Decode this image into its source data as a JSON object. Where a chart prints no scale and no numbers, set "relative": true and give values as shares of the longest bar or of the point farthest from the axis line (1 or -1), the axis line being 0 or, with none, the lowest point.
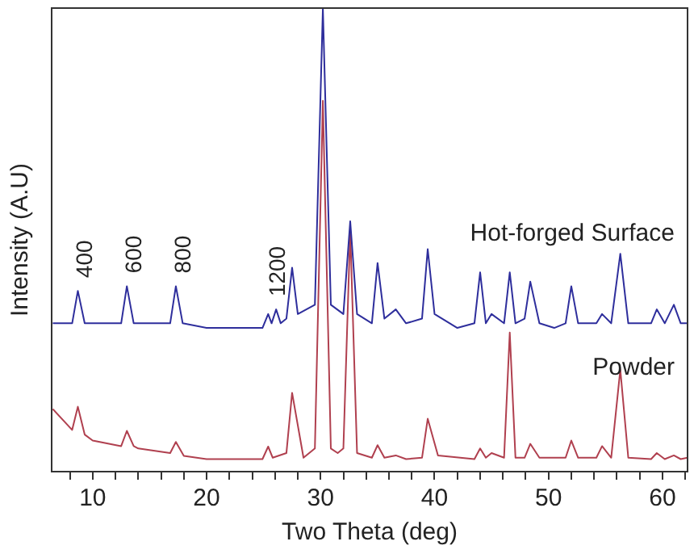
{
  "chart_data": {
    "type": "line",
    "relative": true,
    "xlabel": "Two Theta (deg)",
    "ylabel": "Intensity (A.U)",
    "xlim": [
      6.4,
      62.2
    ],
    "xticks": [
      {
        "value": 8,
        "label": null
      },
      10,
      {
        "value": 12,
        "label": null
      },
      {
        "value": 14,
        "label": null
      },
      {
        "value": 16,
        "label": null
      },
      {
        "value": 18,
        "label": null
      },
      20,
      {
        "value": 22,
        "label": null
      },
      {
        "value": 24,
        "label": null
      },
      {
        "value": 26,
        "label": null
      },
      {
        "value": 28,
        "label": null
      },
      30,
      {
        "value": 32,
        "label": null
      },
      {
        "value": 34,
        "label": null
      },
      {
        "value": 36,
        "label": null
      },
      {
        "value": 38,
        "label": null
      },
      40,
      {
        "value": 42,
        "label": null
      },
      {
        "value": 44,
        "label": null
      },
      {
        "value": 46,
        "label": null
      },
      {
        "value": 48,
        "label": null
      },
      50,
      {
        "value": 52,
        "label": null
      },
      {
        "value": 54,
        "label": null
      },
      {
        "value": 56,
        "label": null
      },
      {
        "value": 58,
        "label": null
      },
      60,
      {
        "value": 62,
        "label": null
      }
    ],
    "grid": false,
    "legend": false,
    "marker": "none",
    "line_style": "solid",
    "series": [
      {
        "name": "Hot-forged Surface",
        "color": "#2e2e9c",
        "x": [
          6.5,
          8.2,
          8.7,
          9.3,
          12.5,
          13.0,
          13.6,
          16.8,
          17.3,
          17.9,
          20,
          24.9,
          25.4,
          25.7,
          26.1,
          26.5,
          27.0,
          27.5,
          28.0,
          29.5,
          30.2,
          30.9,
          32.0,
          32.6,
          33.2,
          34.5,
          35.0,
          35.6,
          36.6,
          37.5,
          38.9,
          39.4,
          40.0,
          42,
          43.5,
          44.0,
          44.5,
          45.0,
          46.1,
          46.6,
          47.1,
          47.9,
          48.4,
          49.2,
          50.5,
          51.5,
          52.0,
          52.6,
          54.2,
          54.7,
          55.5,
          56.3,
          57.0,
          59.0,
          59.5,
          60.2,
          61.0,
          61.6,
          62.2
        ],
        "values": [
          0.32,
          0.32,
          0.39,
          0.32,
          0.32,
          0.4,
          0.32,
          0.32,
          0.4,
          0.32,
          0.31,
          0.31,
          0.34,
          0.32,
          0.35,
          0.32,
          0.33,
          0.44,
          0.34,
          0.36,
          1.0,
          0.36,
          0.34,
          0.54,
          0.34,
          0.32,
          0.45,
          0.33,
          0.35,
          0.32,
          0.33,
          0.48,
          0.34,
          0.31,
          0.32,
          0.43,
          0.32,
          0.34,
          0.32,
          0.43,
          0.32,
          0.33,
          0.41,
          0.32,
          0.31,
          0.32,
          0.4,
          0.32,
          0.32,
          0.34,
          0.32,
          0.47,
          0.32,
          0.32,
          0.35,
          0.32,
          0.36,
          0.32,
          0.32
        ]
      },
      {
        "name": "Powder",
        "color": "#b0404f",
        "x": [
          6.5,
          8.2,
          8.7,
          9.3,
          10,
          12.5,
          13.0,
          13.6,
          14,
          16.8,
          17.3,
          18,
          20,
          24.9,
          25.4,
          25.8,
          27.0,
          27.5,
          28.5,
          29.5,
          30.2,
          30.9,
          31.5,
          32.0,
          32.6,
          33.2,
          34.5,
          35.0,
          35.6,
          36.6,
          37.5,
          38.9,
          39.4,
          40.3,
          43.5,
          44.0,
          44.5,
          45.0,
          46.1,
          46.6,
          47.1,
          47.9,
          48.4,
          49.2,
          51.5,
          52.0,
          52.6,
          54.2,
          54.7,
          55.5,
          56.3,
          57.0,
          59.0,
          59.5,
          60.2,
          61.0,
          61.6,
          62.2
        ],
        "values": [
          0.135,
          0.09,
          0.14,
          0.08,
          0.067,
          0.055,
          0.088,
          0.055,
          0.05,
          0.04,
          0.064,
          0.034,
          0.027,
          0.027,
          0.054,
          0.03,
          0.04,
          0.17,
          0.03,
          0.05,
          0.8,
          0.05,
          0.04,
          0.05,
          0.52,
          0.04,
          0.03,
          0.057,
          0.03,
          0.035,
          0.027,
          0.03,
          0.114,
          0.035,
          0.027,
          0.05,
          0.03,
          0.04,
          0.03,
          0.3,
          0.03,
          0.03,
          0.06,
          0.03,
          0.03,
          0.067,
          0.03,
          0.03,
          0.055,
          0.03,
          0.22,
          0.03,
          0.027,
          0.04,
          0.027,
          0.035,
          0.027,
          0.03
        ]
      }
    ],
    "annotations": [
      {
        "text": "400",
        "x": 8.7,
        "y": 0.39
      },
      {
        "text": "600",
        "x": 13.0,
        "y": 0.4
      },
      {
        "text": "800",
        "x": 17.3,
        "y": 0.4
      },
      {
        "text": "1200",
        "x": 25.6,
        "y": 0.35
      }
    ]
  }
}
